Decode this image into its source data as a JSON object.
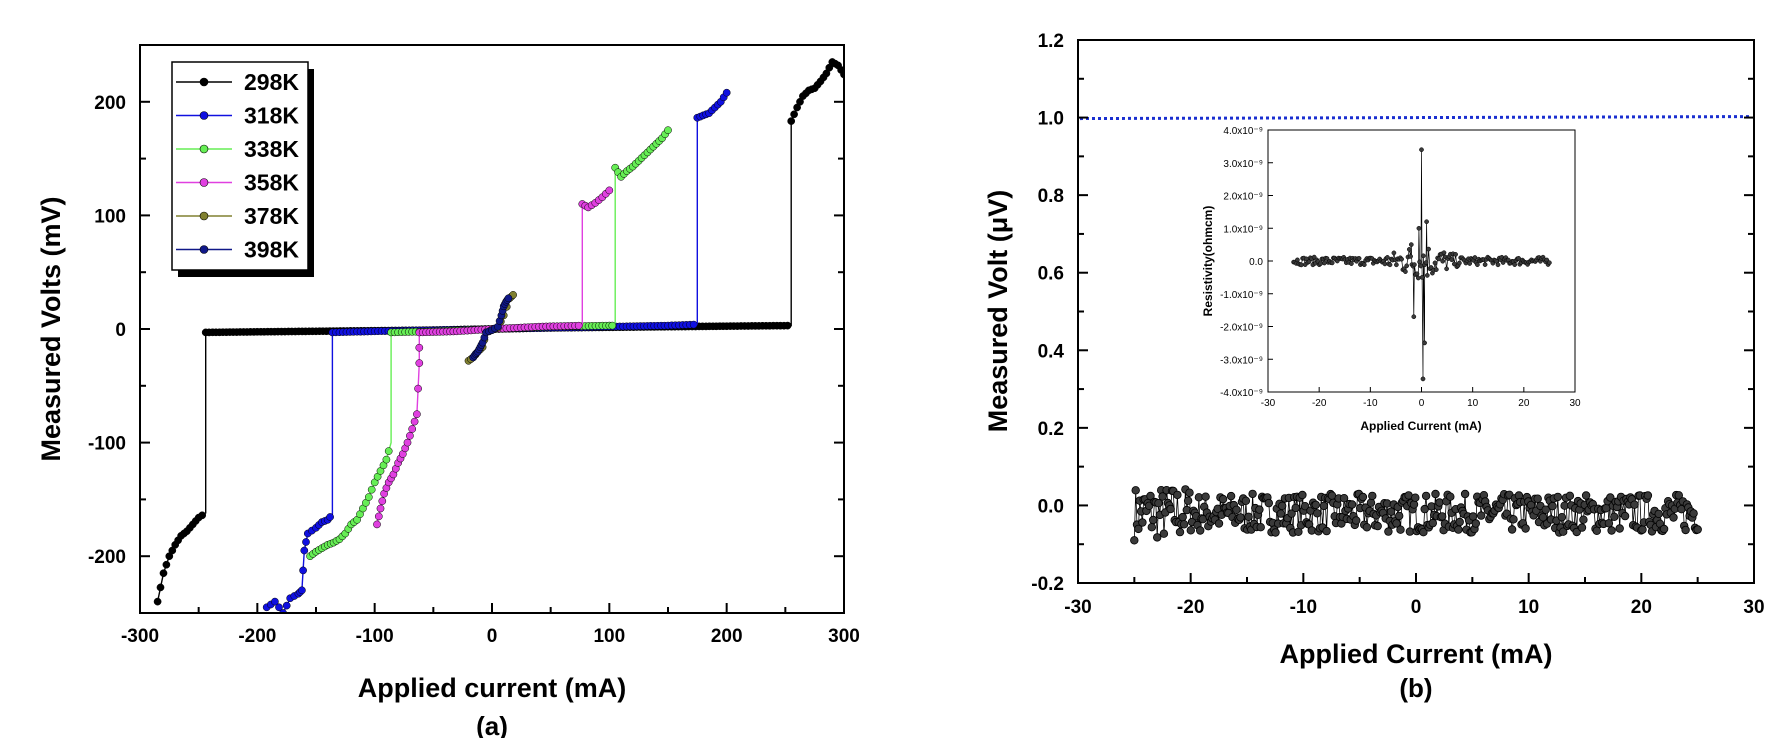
{
  "chart_data": [
    {
      "panel": "(a)",
      "type": "line",
      "xlabel": "Applied current (mA)",
      "ylabel": "Measured Volts (mV)",
      "xlim": [
        -300,
        300
      ],
      "ylim": [
        -250,
        250
      ],
      "xticks": [
        -300,
        -200,
        -100,
        0,
        100,
        200,
        300
      ],
      "yticks": [
        -200,
        -100,
        0,
        100,
        200
      ],
      "legend_position": "top-left",
      "series": [
        {
          "name": "298K",
          "color": "#000000",
          "x": [
            -285,
            -280,
            -275,
            -270,
            -265,
            -260,
            -255,
            -250,
            -244,
            -244,
            -200,
            -150,
            -100,
            -50,
            0,
            50,
            100,
            150,
            200,
            255,
            255,
            260,
            265,
            270,
            275,
            280,
            285,
            290,
            295,
            300
          ],
          "y": [
            -240,
            -215,
            -200,
            -190,
            -182,
            -178,
            -172,
            -166,
            -162,
            -3,
            -2.5,
            -2,
            -1.5,
            -1,
            0,
            1,
            1.5,
            2,
            2.5,
            3,
            183,
            195,
            205,
            210,
            212,
            218,
            225,
            235,
            232,
            224
          ]
        },
        {
          "name": "318K",
          "color": "#1010e0",
          "x": [
            -192,
            -185,
            -178,
            -172,
            -165,
            -162,
            -160,
            -157,
            -150,
            -145,
            -140,
            -136,
            -136,
            -100,
            -50,
            0,
            50,
            100,
            150,
            175,
            175,
            180,
            185,
            190,
            195,
            200
          ],
          "y": [
            -245,
            -240,
            -250,
            -237,
            -233,
            -230,
            -195,
            -180,
            -175,
            -170,
            -168,
            -163,
            -3,
            -2,
            -1,
            0,
            1,
            2,
            3,
            4,
            186,
            188,
            190,
            195,
            200,
            208
          ]
        },
        {
          "name": "338K",
          "color": "#66ee55",
          "x": [
            -155,
            -150,
            -145,
            -140,
            -135,
            -130,
            -125,
            -120,
            -115,
            -110,
            -105,
            -100,
            -95,
            -90,
            -86,
            -86,
            -50,
            0,
            50,
            100,
            105,
            105,
            110,
            115,
            120,
            125,
            130,
            135,
            140,
            145,
            150
          ],
          "y": [
            -200,
            -196,
            -193,
            -190,
            -188,
            -185,
            -180,
            -172,
            -168,
            -158,
            -148,
            -135,
            -125,
            -115,
            -100,
            -3,
            -2,
            0,
            2,
            3,
            3,
            142,
            134,
            139,
            143,
            148,
            153,
            158,
            163,
            168,
            175
          ]
        },
        {
          "name": "358K",
          "color": "#e040e0",
          "x": [
            -98,
            -95,
            -92,
            -88,
            -84,
            -80,
            -76,
            -72,
            -68,
            -64,
            -62,
            -62,
            -30,
            0,
            40,
            77,
            77,
            82,
            88,
            94,
            100
          ],
          "y": [
            -172,
            -158,
            -145,
            -135,
            -128,
            -118,
            -110,
            -100,
            -88,
            -75,
            -30,
            -3,
            -2,
            0,
            2,
            3,
            110,
            107,
            111,
            116,
            122
          ]
        },
        {
          "name": "378K",
          "color": "#808030",
          "x": [
            -20,
            -16,
            -12,
            -8,
            -5,
            0,
            5,
            10,
            15,
            18
          ],
          "y": [
            -28,
            -25,
            -20,
            -16,
            -3,
            -1,
            1,
            12,
            27,
            30
          ]
        },
        {
          "name": "398K",
          "color": "#101888",
          "x": [
            -16,
            -14,
            -12,
            -10,
            -8,
            -5,
            0,
            5,
            8,
            10,
            12,
            14
          ],
          "y": [
            -25,
            -22,
            -20,
            -16,
            -12,
            -3,
            -1,
            2,
            12,
            20,
            24,
            27
          ]
        }
      ]
    },
    {
      "panel": "(b)",
      "type": "scatter",
      "xlabel": "Applied Current (mA)",
      "ylabel": "Measured Volt (μV)",
      "xlim": [
        -30,
        30
      ],
      "ylim": [
        -0.2,
        1.2
      ],
      "xticks": [
        -30,
        -20,
        -10,
        0,
        10,
        20,
        30
      ],
      "yticks": [
        -0.2,
        0.0,
        0.2,
        0.4,
        0.6,
        0.8,
        1.0,
        1.2
      ],
      "reference_line": {
        "y": 1.0,
        "color": "#1a2fd0",
        "style": "dotted"
      },
      "series": [
        {
          "name": "",
          "color": "#000000",
          "x_range": [
            -25,
            25
          ],
          "y_mean": -0.02,
          "y_spread": 0.05
        }
      ],
      "inset": {
        "xlabel": "Applied Current (mA)",
        "ylabel": "Resistivity(ohmcm)",
        "xlim": [
          -30,
          30
        ],
        "ylim": [
          -4e-09,
          4e-09
        ],
        "xticks": [
          -30,
          -20,
          -10,
          0,
          10,
          20,
          30
        ],
        "ytick_labels": [
          "4.0x10⁻⁹",
          "3.0x10⁻⁹",
          "2.0x10⁻⁹",
          "1.0x10⁻⁹",
          "0.0",
          "-1.0x10⁻⁹",
          "-2.0x10⁻⁹",
          "-3.0x10⁻⁹",
          "-4.0x10⁻⁹"
        ],
        "ytick_values": [
          4e-09,
          3e-09,
          2e-09,
          1e-09,
          0,
          -1e-09,
          -2e-09,
          -3e-09,
          -4e-09
        ],
        "series": [
          {
            "name": "",
            "color": "#000000",
            "x_range": [
              -25,
              25
            ],
            "spikes": [
              {
                "x": -1.5,
                "y": -1.7e-09
              },
              {
                "x": -0.5,
                "y": 1e-09
              },
              {
                "x": 0,
                "y": 3.4e-09
              },
              {
                "x": 0.3,
                "y": -3.6e-09
              },
              {
                "x": 1,
                "y": 1.2e-09
              },
              {
                "x": 0.6,
                "y": -2.5e-09
              },
              {
                "x": -2,
                "y": 5e-10
              }
            ]
          }
        ]
      }
    }
  ]
}
